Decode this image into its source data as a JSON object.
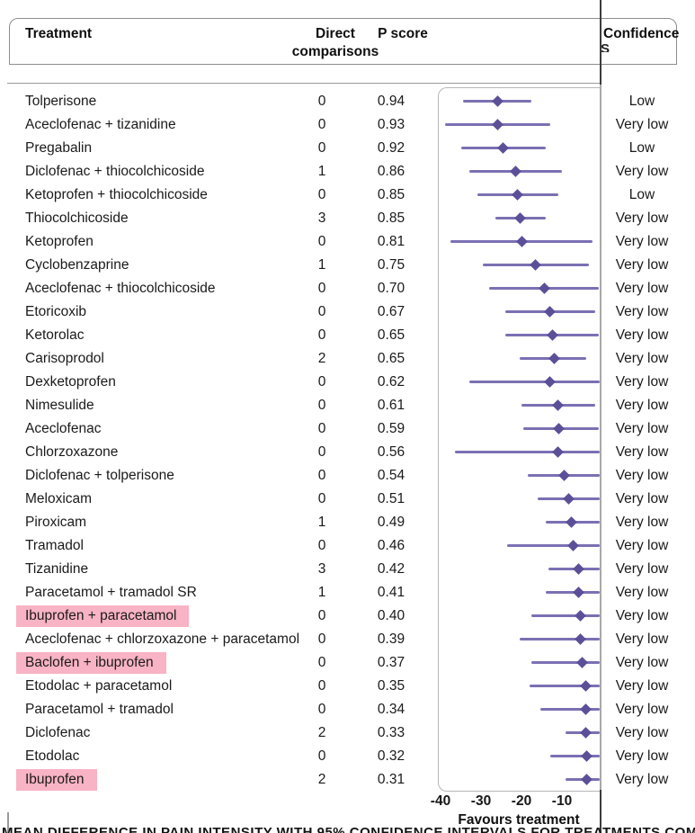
{
  "header": {
    "treatment": "Treatment",
    "direct_comparisons_line1": "Direct",
    "direct_comparisons_line2": "comparisons",
    "p_score": "P score",
    "confidence": "Confidence",
    "confidence_wrapped_fragment": "S"
  },
  "footer": {
    "favours_label": "Favours treatment",
    "clipped_illegible_caption": "MEAN DIFFERENCE IN PAIN INTENSITY WITH 95% CONFIDENCE INTERVALS FOR TREATMENTS COMPARED WITH PLACEBO RANKED BY P SCORE"
  },
  "chart_data": {
    "type": "forest",
    "xlabel": "Favours treatment",
    "x_ticks": [
      -40,
      -30,
      -20,
      -10
    ],
    "x_visible_range": [
      -41,
      0
    ],
    "grid": false,
    "marker_color": "#5b5098",
    "line_color": "#7b70b3",
    "highlight_color": "#f8b3c4",
    "rows": [
      {
        "treatment": "Tolperisone",
        "direct_comparisons": "0",
        "p_score": "0.94",
        "estimate": -26.0,
        "ci_low": -34.5,
        "ci_high": -17.5,
        "confidence": "Low",
        "highlighted": false
      },
      {
        "treatment": "Aceclofenac + tizanidine",
        "direct_comparisons": "0",
        "p_score": "0.93",
        "estimate": -26.0,
        "ci_low": -39.0,
        "ci_high": -13.0,
        "confidence": "Very low",
        "highlighted": false
      },
      {
        "treatment": "Pregabalin",
        "direct_comparisons": "0",
        "p_score": "0.92",
        "estimate": -24.5,
        "ci_low": -35.0,
        "ci_high": -14.0,
        "confidence": "Low",
        "highlighted": false
      },
      {
        "treatment": "Diclofenac + thiocolchicoside",
        "direct_comparisons": "1",
        "p_score": "0.86",
        "estimate": -21.5,
        "ci_low": -33.0,
        "ci_high": -10.0,
        "confidence": "Very low",
        "highlighted": false
      },
      {
        "treatment": "Ketoprofen + thiocolchicoside",
        "direct_comparisons": "0",
        "p_score": "0.85",
        "estimate": -21.0,
        "ci_low": -31.0,
        "ci_high": -11.0,
        "confidence": "Low",
        "highlighted": false
      },
      {
        "treatment": "Thiocolchicoside",
        "direct_comparisons": "3",
        "p_score": "0.85",
        "estimate": -20.3,
        "ci_low": -26.5,
        "ci_high": -14.0,
        "confidence": "Very low",
        "highlighted": false
      },
      {
        "treatment": "Ketoprofen",
        "direct_comparisons": "0",
        "p_score": "0.81",
        "estimate": -20.0,
        "ci_low": -37.5,
        "ci_high": -2.5,
        "confidence": "Very low",
        "highlighted": false
      },
      {
        "treatment": "Cyclobenzaprine",
        "direct_comparisons": "1",
        "p_score": "0.75",
        "estimate": -16.5,
        "ci_low": -29.5,
        "ci_high": -3.3,
        "confidence": "Very low",
        "highlighted": false
      },
      {
        "treatment": "Aceclofenac + thiocolchicoside",
        "direct_comparisons": "0",
        "p_score": "0.70",
        "estimate": -14.4,
        "ci_low": -28.0,
        "ci_high": -0.8,
        "confidence": "Very low",
        "highlighted": false
      },
      {
        "treatment": "Etoricoxib",
        "direct_comparisons": "0",
        "p_score": "0.67",
        "estimate": -12.9,
        "ci_low": -24.0,
        "ci_high": -1.8,
        "confidence": "Very low",
        "highlighted": false
      },
      {
        "treatment": "Ketorolac",
        "direct_comparisons": "0",
        "p_score": "0.65",
        "estimate": -12.4,
        "ci_low": -24.0,
        "ci_high": -0.8,
        "confidence": "Very low",
        "highlighted": false
      },
      {
        "treatment": "Carisoprodol",
        "direct_comparisons": "2",
        "p_score": "0.65",
        "estimate": -12.0,
        "ci_low": -20.5,
        "ci_high": -4.0,
        "confidence": "Very low",
        "highlighted": false
      },
      {
        "treatment": "Dexketoprofen",
        "direct_comparisons": "0",
        "p_score": "0.62",
        "estimate": -12.9,
        "ci_low": -33.0,
        "ci_high": 0.5,
        "confidence": "Very low",
        "highlighted": false
      },
      {
        "treatment": "Nimesulide",
        "direct_comparisons": "0",
        "p_score": "0.61",
        "estimate": -11.0,
        "ci_low": -20.0,
        "ci_high": -1.8,
        "confidence": "Very low",
        "highlighted": false
      },
      {
        "treatment": "Aceclofenac",
        "direct_comparisons": "0",
        "p_score": "0.59",
        "estimate": -10.7,
        "ci_low": -19.5,
        "ci_high": -1.0,
        "confidence": "Very low",
        "highlighted": false
      },
      {
        "treatment": "Chlorzoxazone",
        "direct_comparisons": "0",
        "p_score": "0.56",
        "estimate": -11.1,
        "ci_low": -36.5,
        "ci_high": 1.0,
        "confidence": "Very low",
        "highlighted": false
      },
      {
        "treatment": "Diclofenac + tolperisone",
        "direct_comparisons": "0",
        "p_score": "0.54",
        "estimate": -9.4,
        "ci_low": -18.5,
        "ci_high": 0.5,
        "confidence": "Very low",
        "highlighted": false
      },
      {
        "treatment": "Meloxicam",
        "direct_comparisons": "0",
        "p_score": "0.51",
        "estimate": -8.3,
        "ci_low": -16.0,
        "ci_high": 1.0,
        "confidence": "Very low",
        "highlighted": false
      },
      {
        "treatment": "Piroxicam",
        "direct_comparisons": "1",
        "p_score": "0.49",
        "estimate": -7.6,
        "ci_low": -14.0,
        "ci_high": 1.0,
        "confidence": "Very low",
        "highlighted": false
      },
      {
        "treatment": "Tramadol",
        "direct_comparisons": "0",
        "p_score": "0.46",
        "estimate": -7.3,
        "ci_low": -23.5,
        "ci_high": 1.0,
        "confidence": "Very low",
        "highlighted": false
      },
      {
        "treatment": "Tizanidine",
        "direct_comparisons": "3",
        "p_score": "0.42",
        "estimate": -6.0,
        "ci_low": -13.3,
        "ci_high": 1.0,
        "confidence": "Very low",
        "highlighted": false
      },
      {
        "treatment": "Paracetamol + tramadol SR",
        "direct_comparisons": "1",
        "p_score": "0.41",
        "estimate": -5.8,
        "ci_low": -14.0,
        "ci_high": 1.0,
        "confidence": "Very low",
        "highlighted": false
      },
      {
        "treatment": "Ibuprofen + paracetamol",
        "direct_comparisons": "0",
        "p_score": "0.40",
        "estimate": -5.4,
        "ci_low": -17.5,
        "ci_high": 1.0,
        "confidence": "Very low",
        "highlighted": true
      },
      {
        "treatment": "Aceclofenac + chlorzoxazone + paracetamol",
        "direct_comparisons": "0",
        "p_score": "0.39",
        "estimate": -5.4,
        "ci_low": -20.5,
        "ci_high": 1.0,
        "confidence": "Very low",
        "highlighted": false
      },
      {
        "treatment": "Baclofen + ibuprofen",
        "direct_comparisons": "0",
        "p_score": "0.37",
        "estimate": -5.0,
        "ci_low": -17.5,
        "ci_high": 1.0,
        "confidence": "Very low",
        "highlighted": true
      },
      {
        "treatment": "Etodolac + paracetamol",
        "direct_comparisons": "0",
        "p_score": "0.35",
        "estimate": -4.2,
        "ci_low": -18.0,
        "ci_high": 1.0,
        "confidence": "Very low",
        "highlighted": false
      },
      {
        "treatment": "Paracetamol + tramadol",
        "direct_comparisons": "0",
        "p_score": "0.34",
        "estimate": -4.2,
        "ci_low": -15.3,
        "ci_high": 1.0,
        "confidence": "Very low",
        "highlighted": false
      },
      {
        "treatment": "Diclofenac",
        "direct_comparisons": "2",
        "p_score": "0.33",
        "estimate": -4.2,
        "ci_low": -9.1,
        "ci_high": 1.0,
        "confidence": "Very low",
        "highlighted": false
      },
      {
        "treatment": "Etodolac",
        "direct_comparisons": "0",
        "p_score": "0.32",
        "estimate": -3.8,
        "ci_low": -13.0,
        "ci_high": 1.0,
        "confidence": "Very low",
        "highlighted": false
      },
      {
        "treatment": "Ibuprofen",
        "direct_comparisons": "2",
        "p_score": "0.31",
        "estimate": -3.8,
        "ci_low": -9.1,
        "ci_high": 1.0,
        "confidence": "Very low",
        "highlighted": true
      }
    ]
  }
}
